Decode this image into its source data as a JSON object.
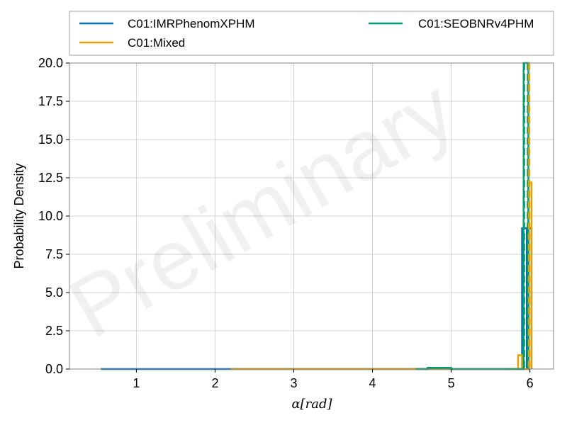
{
  "chart_data": {
    "type": "line",
    "title": "",
    "xlabel": "α[rad]",
    "ylabel": "Probability Density",
    "xlim": [
      0.15,
      6.3
    ],
    "ylim": [
      0,
      20
    ],
    "xticks": [
      1,
      2,
      3,
      4,
      5,
      6
    ],
    "yticks": [
      0.0,
      2.5,
      5.0,
      7.5,
      10.0,
      12.5,
      15.0,
      17.5,
      20.0
    ],
    "ytick_labels": [
      "0.0",
      "2.5",
      "5.0",
      "7.5",
      "10.0",
      "12.5",
      "15.0",
      "17.5",
      "20.0"
    ],
    "grid": true,
    "legend_position": "top",
    "watermark": "Preliminary",
    "series": [
      {
        "name": "C01:IMRPhenomXPHM",
        "color": "#0072b2",
        "style": "step",
        "points": [
          [
            0.55,
            0.0
          ],
          [
            2.2,
            0.0
          ],
          [
            4.5,
            0.0
          ],
          [
            5.85,
            0.0
          ],
          [
            5.9,
            0.0
          ],
          [
            5.9,
            9.2
          ],
          [
            5.96,
            9.2
          ],
          [
            5.96,
            0.0
          ],
          [
            5.98,
            0.0
          ],
          [
            5.98,
            9.2
          ],
          [
            6.02,
            9.2
          ],
          [
            6.02,
            0.0
          ]
        ]
      },
      {
        "name": "C01:Mixed",
        "color": "#e69f00",
        "style": "step",
        "points": [
          [
            2.2,
            0.0
          ],
          [
            4.55,
            0.0
          ],
          [
            5.85,
            0.0
          ],
          [
            5.85,
            0.9
          ],
          [
            5.9,
            0.9
          ],
          [
            5.9,
            0.0
          ],
          [
            5.98,
            0.0
          ],
          [
            5.98,
            12.2
          ],
          [
            6.02,
            12.2
          ],
          [
            6.02,
            0.0
          ]
        ]
      },
      {
        "name": "C01:SEOBNRv4PHM",
        "color": "#009e73",
        "style": "step",
        "points": [
          [
            4.55,
            0.0
          ],
          [
            4.7,
            0.0
          ],
          [
            4.7,
            0.08
          ],
          [
            5.0,
            0.08
          ],
          [
            5.0,
            0.0
          ],
          [
            5.82,
            0.0
          ],
          [
            5.92,
            0.0
          ],
          [
            5.92,
            20.0
          ],
          [
            5.98,
            20.0
          ],
          [
            5.98,
            0.0
          ]
        ]
      }
    ],
    "vertical_lines": [
      {
        "series": "C01:SEOBNRv4PHM",
        "x": 5.925,
        "style": "dashed",
        "color": "#009e73"
      },
      {
        "series": "C01:SEOBNRv4PHM",
        "x": 5.975,
        "style": "dashed",
        "color": "#009e73"
      },
      {
        "series": "C01:Mixed",
        "x": 5.99,
        "style": "dashed",
        "color": "#e69f00"
      }
    ]
  }
}
